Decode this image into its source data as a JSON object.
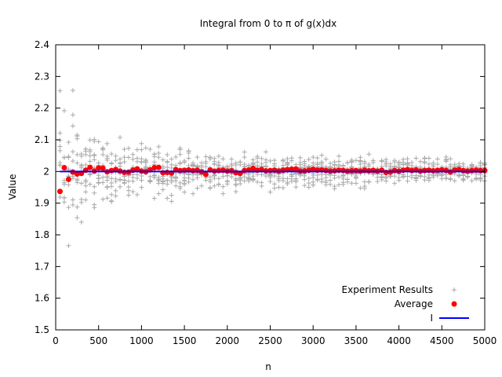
{
  "chart_data": {
    "type": "scatter",
    "title": "Integral from 0 to π of g(x)dx",
    "xlabel": "n",
    "ylabel": "Value",
    "xlim": [
      0,
      5000
    ],
    "ylim": [
      1.5,
      2.4
    ],
    "xticks": [
      "0",
      "500",
      "1000",
      "1500",
      "2000",
      "2500",
      "3000",
      "3500",
      "4000",
      "4500",
      "5000"
    ],
    "yticks": [
      "1.5",
      "1.6",
      "1.7",
      "1.8",
      "1.9",
      "2",
      "2.1",
      "2.2",
      "2.3",
      "2.4"
    ],
    "grid": false,
    "legend_position": "bottom-right",
    "series": [
      {
        "name": "Experiment Results",
        "style": "points-plus",
        "color": "#aaaaaa",
        "x_range": [
          0,
          5000
        ],
        "x_step": 50,
        "samples_per_x": 10,
        "center": 2.0,
        "approx_spread": [
          [
            50,
            0.45
          ],
          [
            500,
            0.13
          ],
          [
            1000,
            0.11
          ],
          [
            2000,
            0.08
          ],
          [
            3000,
            0.07
          ],
          [
            5000,
            0.05
          ]
        ]
      },
      {
        "name": "Average",
        "style": "points-circle",
        "color": "#ff0000",
        "x": [
          50,
          100,
          150,
          200,
          250,
          300,
          350,
          400,
          450,
          500,
          550,
          600,
          650,
          700,
          750,
          800,
          850,
          900,
          950,
          1000,
          1050,
          1100,
          1150,
          1200,
          1250,
          1300,
          1350,
          1400,
          1450,
          1500,
          1550,
          1600,
          1650,
          1700,
          1750,
          1800,
          1850,
          1900,
          1950,
          2000,
          2050,
          2100,
          2150,
          2200,
          2250,
          2300,
          2350,
          2400,
          2450,
          2500,
          2550,
          2600,
          2650,
          2700,
          2750,
          2800,
          2850,
          2900,
          2950,
          3000,
          3050,
          3100,
          3150,
          3200,
          3250,
          3300,
          3350,
          3400,
          3450,
          3500,
          3550,
          3600,
          3650,
          3700,
          3750,
          3800,
          3850,
          3900,
          3950,
          4000,
          4050,
          4100,
          4150,
          4200,
          4250,
          4300,
          4350,
          4400,
          4450,
          4500,
          4550,
          4600,
          4650,
          4700,
          4750,
          4800,
          4850,
          4900,
          4950,
          5000
        ],
        "y": [
          1.937,
          2.012,
          1.975,
          1.998,
          1.992,
          1.994,
          2.004,
          2.013,
          2.001,
          2.011,
          2.01,
          1.999,
          2.003,
          2.006,
          2.001,
          1.997,
          1.998,
          2.004,
          2.008,
          2.001,
          1.999,
          2.005,
          2.012,
          2.013,
          1.996,
          1.997,
          1.995,
          2.006,
          2.003,
          2.004,
          2.005,
          2.002,
          2.004,
          1.999,
          1.991,
          2.005,
          2.001,
          2.003,
          2.004,
          2.001,
          2.002,
          1.996,
          1.994,
          2.003,
          2.005,
          2.01,
          2.004,
          2.006,
          2.002,
          2.003,
          2.004,
          2.001,
          2.004,
          2.006,
          2.007,
          2.008,
          2.001,
          2.002,
          2.004,
          2.007,
          2.004,
          2.005,
          2.003,
          2.001,
          2.002,
          2.004,
          2.003,
          2.001,
          2.002,
          2.003,
          2.001,
          2.004,
          2.002,
          2.003,
          2.001,
          2.004,
          1.997,
          1.998,
          2.003,
          2.001,
          2.004,
          2.006,
          2.003,
          2.005,
          2.001,
          2.003,
          2.004,
          2.002,
          2.004,
          2.005,
          2.003,
          1.998,
          2.004,
          2.006,
          2.003,
          2.001,
          2.003,
          2.004,
          2.003,
          2.003
        ]
      },
      {
        "name": "I",
        "style": "line",
        "color": "#0000ff",
        "x": [
          50,
          5000
        ],
        "y": [
          2.0,
          2.0
        ]
      }
    ]
  }
}
